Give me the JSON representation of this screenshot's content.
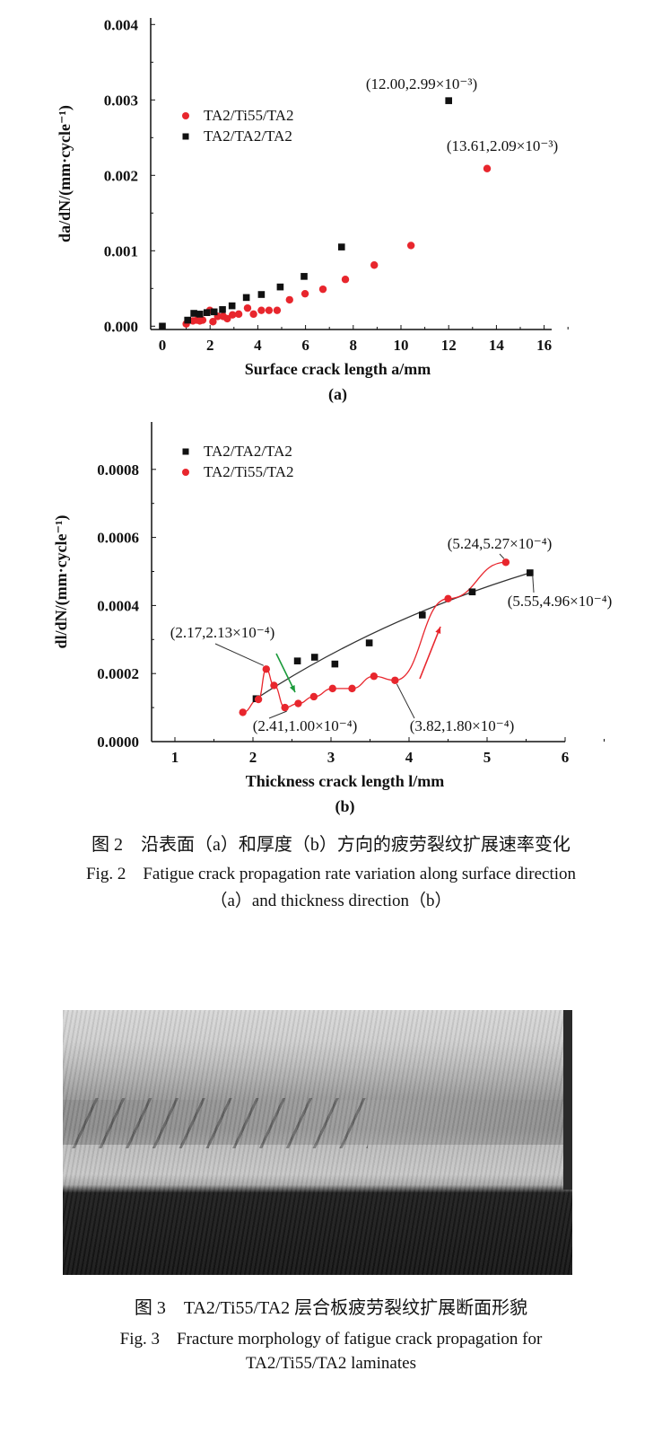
{
  "chart_data": [
    {
      "type": "scatter",
      "panel_label": "(a)",
      "xlabel": "Surface crack length a/mm",
      "ylabel": "da/dN/(mm·cycle⁻¹)",
      "xlim": [
        -0.5,
        17
      ],
      "ylim": [
        0,
        0.004
      ],
      "xticks": [
        "0",
        "2",
        "4",
        "6",
        "8",
        "10",
        "12",
        "14",
        "16"
      ],
      "yticks": [
        "0.000",
        "0.001",
        "0.002",
        "0.003",
        "0.004"
      ],
      "grid": false,
      "legend_position": "top-left",
      "series": [
        {
          "name": "TA2/Ti55/TA2",
          "color": "#e8262d",
          "marker": "circle",
          "x": [
            1.0,
            1.28,
            1.44,
            1.57,
            1.69,
            1.99,
            2.12,
            2.32,
            2.55,
            2.72,
            2.94,
            3.2,
            3.57,
            3.82,
            4.15,
            4.47,
            4.81,
            5.33,
            5.98,
            6.73,
            7.67,
            8.88,
            10.42,
            13.61
          ],
          "y": [
            3e-05,
            7e-05,
            8e-05,
            7e-05,
            8e-05,
            0.00021,
            6e-05,
            0.00013,
            0.00013,
            0.0001,
            0.00015,
            0.00016,
            0.00024,
            0.00016,
            0.00021,
            0.00021,
            0.00021,
            0.00035,
            0.00043,
            0.00049,
            0.00062,
            0.00081,
            0.00107,
            0.00209
          ]
        },
        {
          "name": "TA2/TA2/TA2",
          "color": "#111111",
          "marker": "square",
          "x": [
            0,
            1.06,
            1.32,
            1.57,
            1.87,
            2.17,
            2.52,
            2.92,
            3.52,
            4.15,
            4.94,
            5.94,
            7.51,
            12.0
          ],
          "y": [
            0,
            8e-05,
            0.00017,
            0.00016,
            0.00018,
            0.00019,
            0.00022,
            0.00027,
            0.00038,
            0.00042,
            0.00052,
            0.00066,
            0.00105,
            0.00299
          ]
        }
      ],
      "annotations": [
        {
          "text": "(12.00,2.99×10⁻³)",
          "x": 12.0,
          "y": 0.00299
        },
        {
          "text": "(13.61,2.09×10⁻³)",
          "x": 13.61,
          "y": 0.00209
        }
      ]
    },
    {
      "type": "line",
      "panel_label": "(b)",
      "xlabel": "Thickness crack length l/mm",
      "ylabel": "dl/dN/(mm·cycle⁻¹)",
      "xlim": [
        0.7,
        6.3
      ],
      "ylim": [
        0,
        0.0008
      ],
      "xticks": [
        "1",
        "2",
        "3",
        "4",
        "5",
        "6"
      ],
      "yticks": [
        "0.0000",
        "0.0002",
        "0.0004",
        "0.0006",
        "0.0008"
      ],
      "grid": false,
      "legend_position": "top-left",
      "series": [
        {
          "name": "TA2/TA2/TA2",
          "color": "#111111",
          "marker": "square",
          "fit_line": true,
          "x": [
            2.04,
            2.57,
            2.79,
            3.05,
            3.49,
            4.17,
            4.81,
            5.55
          ],
          "y": [
            0.000126,
            0.000237,
            0.000248,
            0.000228,
            0.00029,
            0.000372,
            0.00044,
            0.000496
          ]
        },
        {
          "name": "TA2/Ti55/TA2",
          "color": "#e8262d",
          "marker": "circle",
          "x": [
            1.87,
            2.07,
            2.17,
            2.27,
            2.41,
            2.58,
            2.78,
            3.02,
            3.27,
            3.55,
            3.82,
            4.5,
            5.24
          ],
          "y": [
            8.6e-05,
            0.000124,
            0.000213,
            0.000165,
            0.0001,
            0.000112,
            0.000132,
            0.000156,
            0.000156,
            0.000192,
            0.00018,
            0.00042,
            0.000527
          ]
        }
      ],
      "annotations": [
        {
          "text": "(2.17,2.13×10⁻⁴)",
          "x": 2.17,
          "y": 0.000213
        },
        {
          "text": "(2.41,1.00×10⁻⁴)",
          "x": 2.41,
          "y": 0.0001
        },
        {
          "text": "(3.82,1.80×10⁻⁴)",
          "x": 3.82,
          "y": 0.00018
        },
        {
          "text": "(5.24,5.27×10⁻⁴)",
          "x": 5.24,
          "y": 0.000527
        },
        {
          "text": "(5.55,4.96×10⁻⁴)",
          "x": 5.55,
          "y": 0.000496
        }
      ],
      "arrows": [
        {
          "color": "#1a9a3a",
          "direction": "down"
        },
        {
          "color": "#e8262d",
          "direction": "up"
        }
      ]
    }
  ],
  "captions": {
    "fig2_cn": "图 2　沿表面（a）和厚度（b）方向的疲劳裂纹扩展速率变化",
    "fig2_en_1": "Fig. 2　Fatigue crack propagation rate variation along surface direction",
    "fig2_en_2": "（a）and thickness direction（b）",
    "fig3_cn": "图 3　TA2/Ti55/TA2 层合板疲劳裂纹扩展断面形貌",
    "fig3_en_1": "Fig. 3　Fracture morphology of fatigue crack propagation for",
    "fig3_en_2": "TA2/Ti55/TA2 laminates"
  }
}
